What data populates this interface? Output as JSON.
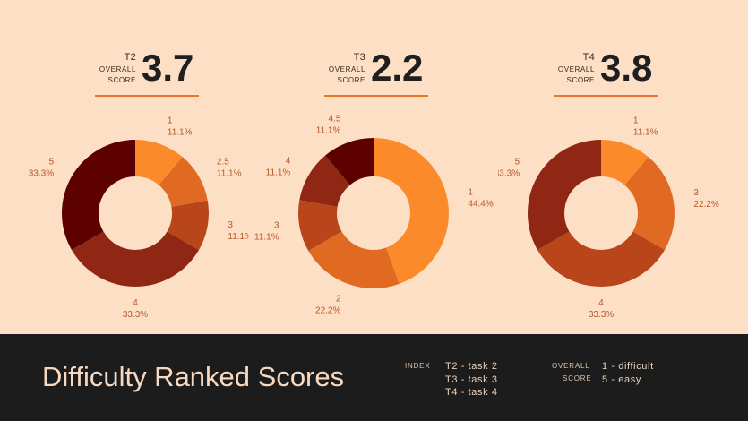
{
  "overall_label": "OVERALL SCORE",
  "chart_data": [
    {
      "type": "pie",
      "style": "donut",
      "id": "T2",
      "overall_score": "3.7",
      "slices": [
        {
          "label": "1",
          "value": 11.1,
          "pct": "11.1%",
          "color": "#fb8b2a"
        },
        {
          "label": "2.5",
          "value": 11.1,
          "pct": "11.1%",
          "color": "#e06a22"
        },
        {
          "label": "3",
          "value": 11.1,
          "pct": "11.1%",
          "color": "#b9461b"
        },
        {
          "label": "4",
          "value": 33.3,
          "pct": "33.3%",
          "color": "#8f2714"
        },
        {
          "label": "5",
          "value": 33.3,
          "pct": "33.3%",
          "color": "#5c0000"
        }
      ]
    },
    {
      "type": "pie",
      "style": "donut",
      "id": "T3",
      "overall_score": "2.2",
      "slices": [
        {
          "label": "1",
          "value": 44.4,
          "pct": "44.4%",
          "color": "#fb8b2a"
        },
        {
          "label": "2",
          "value": 22.2,
          "pct": "22.2%",
          "color": "#e06a22"
        },
        {
          "label": "3",
          "value": 11.1,
          "pct": "11.1%",
          "color": "#b9461b"
        },
        {
          "label": "4",
          "value": 11.1,
          "pct": "11.1%",
          "color": "#8f2714"
        },
        {
          "label": "4.5",
          "value": 11.1,
          "pct": "11.1%",
          "color": "#5c0000"
        }
      ]
    },
    {
      "type": "pie",
      "style": "donut",
      "id": "T4",
      "overall_score": "3.8",
      "slices": [
        {
          "label": "1",
          "value": 11.1,
          "pct": "11.1%",
          "color": "#fb8b2a"
        },
        {
          "label": "3",
          "value": 22.2,
          "pct": "22.2%",
          "color": "#e06a22"
        },
        {
          "label": "4",
          "value": 33.3,
          "pct": "33.3%",
          "color": "#b9461b"
        },
        {
          "label": "5",
          "value": 33.3,
          "pct": "33.3%",
          "color": "#8f2714"
        }
      ]
    }
  ],
  "footer": {
    "title": "Difficulty Ranked Scores",
    "index_label": "INDEX",
    "index_items": [
      "T2 - task 2",
      "T3 - task 3",
      "T4 - task 4"
    ],
    "overall_label_1": "OVERALL",
    "overall_label_2": "SCORE",
    "overall_items": [
      "1 - difficult",
      "5 - easy"
    ]
  },
  "colors": {
    "background": "#fddfc6",
    "footer": "#1c1c1c",
    "accent": "#e8762b",
    "label_text": "#b7572a"
  }
}
